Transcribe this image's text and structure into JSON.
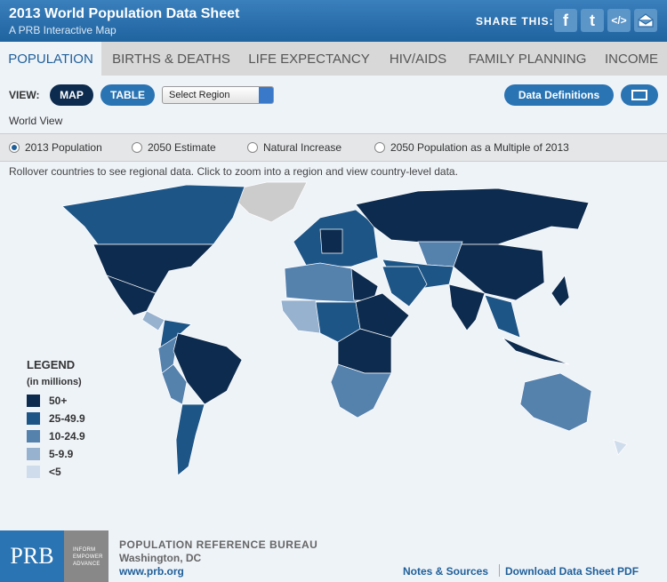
{
  "header": {
    "title": "2013 World Population Data Sheet",
    "subtitle": "A PRB Interactive Map",
    "share_label": "SHARE THIS:",
    "share_icons": [
      "f",
      "t",
      "</>"
    ]
  },
  "tabs": [
    "POPULATION",
    "BIRTHS & DEATHS",
    "LIFE EXPECTANCY",
    "HIV/AIDS",
    "FAMILY PLANNING",
    "INCOME"
  ],
  "toolbar": {
    "view_label": "VIEW:",
    "buttons": [
      "MAP",
      "TABLE"
    ],
    "select": "Select Region",
    "definitions": "Data Definitions"
  },
  "view_title": "World View",
  "radio_options": [
    "2013 Population",
    "2050 Estimate",
    "Natural Increase",
    "2050 Population as a Multiple of 2013"
  ],
  "instructions": "Rollover countries to see regional data. Click to zoom into a region and view country-level data.",
  "legend": {
    "title": "LEGEND",
    "subtitle": "(in millions)",
    "items": [
      {
        "label": "50+",
        "color": "#0d2b4e"
      },
      {
        "label": "25-49.9",
        "color": "#1d5587"
      },
      {
        "label": "10-24.9",
        "color": "#5581ad"
      },
      {
        "label": "5-9.9",
        "color": "#97b2cf"
      },
      {
        "label": "<5",
        "color": "#cfdceb"
      }
    ]
  },
  "footer": {
    "logo": "PRB",
    "tagline": [
      "INFORM",
      "EMPOWER",
      "ADVANCE"
    ],
    "org": "POPULATION REFERENCE BUREAU",
    "city": "Washington, DC",
    "url": "www.prb.org",
    "links": [
      "Notes & Sources",
      "Download Data Sheet PDF"
    ]
  }
}
